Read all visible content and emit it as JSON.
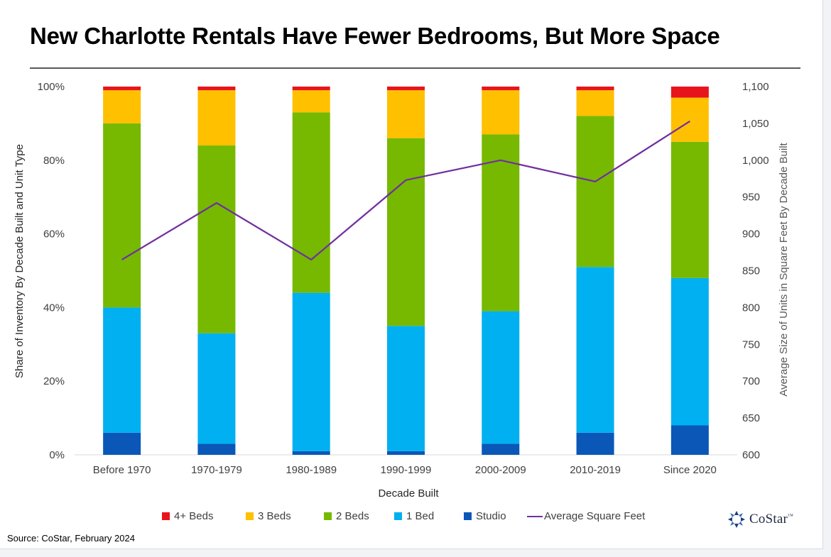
{
  "title": "New Charlotte Rentals Have Fewer Bedrooms, But More Space",
  "source": "Source: CoStar, February 2024",
  "logo_text": "CoStar",
  "logo_mark": "™",
  "chart_data": {
    "type": "bar",
    "stacked": true,
    "categories": [
      "Before 1970",
      "1970-1979",
      "1980-1989",
      "1990-1999",
      "2000-2009",
      "2010-2019",
      "Since 2020"
    ],
    "xlabel": "Decade Built",
    "ylabel": "Share of Inventory By Decade Built and Unit Type",
    "ylabel_right": "Average Size of Units in Square Feet By Decade Built",
    "ylim": [
      0,
      100
    ],
    "ylim_right": [
      600,
      1100
    ],
    "yticks": [
      "0%",
      "20%",
      "40%",
      "60%",
      "80%",
      "100%"
    ],
    "yticks_right": [
      "600",
      "650",
      "700",
      "750",
      "800",
      "850",
      "900",
      "950",
      "1,000",
      "1,050",
      "1,100"
    ],
    "legend_position": "bottom",
    "series": [
      {
        "name": "Studio",
        "color": "#0a57b8",
        "values": [
          6,
          3,
          1,
          1,
          3,
          6,
          8
        ]
      },
      {
        "name": "1 Bed",
        "color": "#00b0f0",
        "values": [
          34,
          30,
          43,
          34,
          36,
          45,
          40
        ]
      },
      {
        "name": "2 Beds",
        "color": "#76b900",
        "values": [
          50,
          51,
          49,
          51,
          48,
          41,
          37
        ]
      },
      {
        "name": "3 Beds",
        "color": "#ffc000",
        "values": [
          9,
          15,
          6,
          13,
          12,
          7,
          12
        ]
      },
      {
        "name": "4+ Beds",
        "color": "#e8141c",
        "values": [
          1,
          1,
          1,
          1,
          1,
          1,
          3
        ]
      }
    ],
    "line_series": {
      "name": "Average Square Feet",
      "color": "#7030a0",
      "axis": "right",
      "values": [
        865,
        942,
        865,
        973,
        1000,
        971,
        1053
      ]
    },
    "legend_order": [
      "4+ Beds",
      "3 Beds",
      "2 Beds",
      "1 Bed",
      "Studio",
      "Average Square Feet"
    ]
  }
}
